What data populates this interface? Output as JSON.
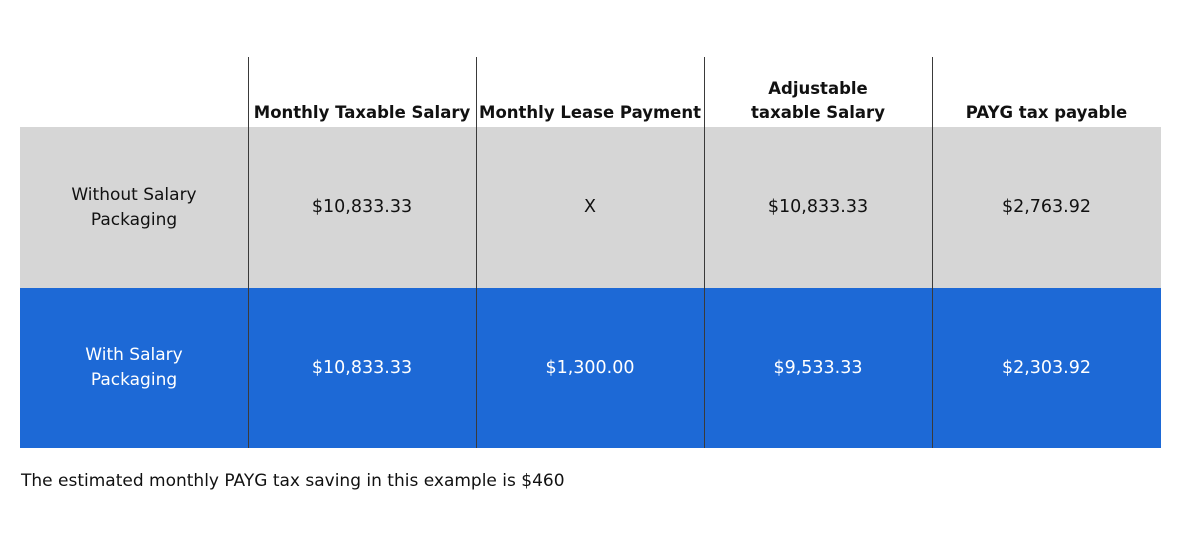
{
  "table": {
    "headers": [
      "",
      "Monthly Taxable Salary",
      "Monthly Lease Payment",
      "Adjustable taxable Salary",
      "PAYG tax payable"
    ],
    "rows": [
      {
        "label": "Without Salary Packaging",
        "cells": [
          "$10,833.33",
          "X",
          "$10,833.33",
          "$2,763.92"
        ]
      },
      {
        "label": "With Salary Packaging",
        "cells": [
          "$10,833.33",
          "$1,300.00",
          "$9,533.33",
          "$2,303.92"
        ]
      }
    ]
  },
  "footnote": "The estimated monthly PAYG tax saving in this example is $460",
  "colors": {
    "without_row_bg": "#d6d6d6",
    "with_row_bg": "#1d69d6",
    "with_row_text": "#ffffff",
    "divider": "#3a3a3a"
  }
}
